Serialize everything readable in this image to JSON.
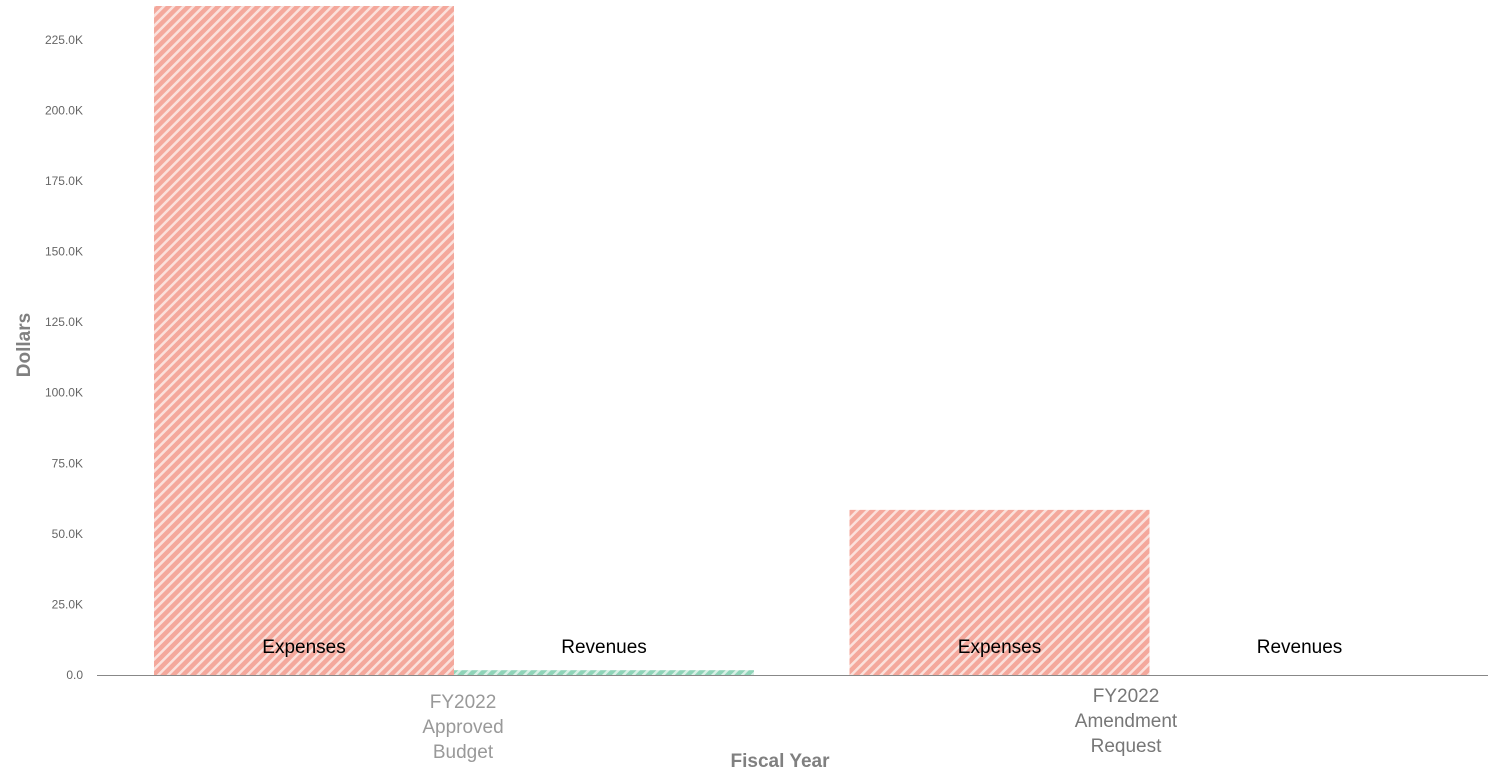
{
  "chart_data": {
    "type": "bar",
    "title": "",
    "xlabel": "Fiscal Year",
    "ylabel": "Dollars",
    "ylim": [
      0,
      237000
    ],
    "yticks": [
      0,
      25000,
      50000,
      75000,
      100000,
      125000,
      150000,
      175000,
      200000,
      225000
    ],
    "ytick_labels": [
      "0.0",
      "25.0K",
      "50.0K",
      "75.0K",
      "100.0K",
      "125.0K",
      "150.0K",
      "175.0K",
      "200.0K",
      "225.0K"
    ],
    "grid": false,
    "categories": [
      {
        "lines": [
          "FY2022",
          "Approved",
          "Budget"
        ],
        "color": "#999999"
      },
      {
        "lines": [
          "FY2022",
          "Amendment",
          "Request"
        ],
        "color": "#777777"
      }
    ],
    "series": [
      {
        "name": "Expenses",
        "values": [
          237000,
          58500
        ],
        "color": "#f4a89c",
        "stripe": "#ffffff"
      },
      {
        "name": "Revenues",
        "values": [
          1700,
          0
        ],
        "color": "#8fd4b8",
        "stripe": "#ffffff"
      }
    ]
  }
}
